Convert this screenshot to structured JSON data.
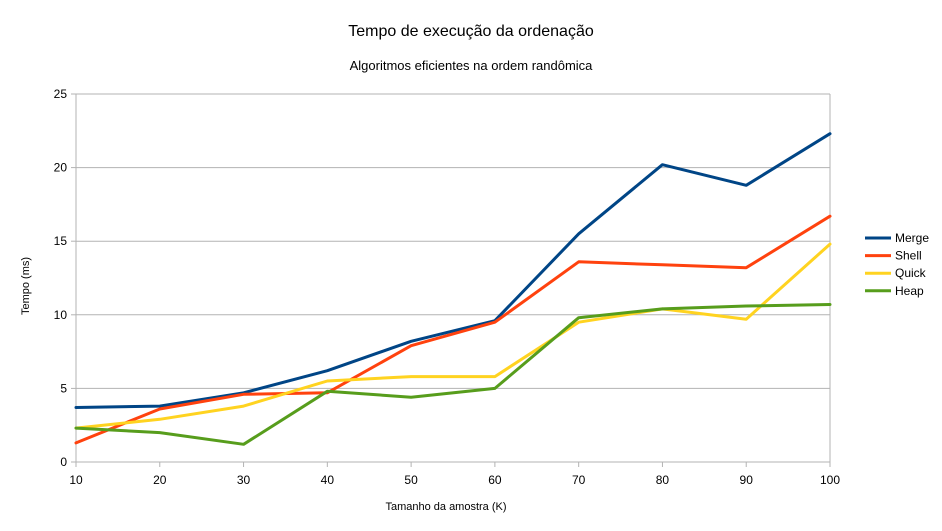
{
  "chart_data": {
    "type": "line",
    "title": "Tempo de execução da ordenação",
    "subtitle": "Algoritmos eficientes na ordem randômica",
    "xlabel": "Tamanho da amostra (K)",
    "ylabel": "Tempo (ms)",
    "x": [
      10,
      20,
      30,
      40,
      50,
      60,
      70,
      80,
      90,
      100
    ],
    "x_tick_labels": [
      "10",
      "20",
      "30",
      "40",
      "50",
      "60",
      "70",
      "80",
      "90",
      "100"
    ],
    "xlim": [
      10,
      100
    ],
    "ylim": [
      0,
      25
    ],
    "y_ticks": [
      0,
      5,
      10,
      15,
      20,
      25
    ],
    "y_tick_labels": [
      "0",
      "5",
      "10",
      "15",
      "20",
      "25"
    ],
    "grid": "horizontal",
    "legend_position": "right",
    "series": [
      {
        "name": "Merge",
        "color": "#004586",
        "values": [
          3.7,
          3.8,
          4.7,
          6.2,
          8.2,
          9.6,
          15.5,
          20.2,
          18.8,
          22.3
        ]
      },
      {
        "name": "Shell",
        "color": "#ff420e",
        "values": [
          1.3,
          3.6,
          4.6,
          4.7,
          7.9,
          9.5,
          13.6,
          13.4,
          13.2,
          16.7
        ]
      },
      {
        "name": "Quick",
        "color": "#ffd320",
        "values": [
          2.3,
          2.9,
          3.8,
          5.5,
          5.8,
          5.8,
          9.5,
          10.4,
          9.7,
          14.8
        ]
      },
      {
        "name": "Heap",
        "color": "#579d1c",
        "values": [
          2.3,
          2.0,
          1.2,
          4.8,
          4.4,
          5.0,
          9.8,
          10.4,
          10.6,
          10.7
        ]
      }
    ]
  }
}
